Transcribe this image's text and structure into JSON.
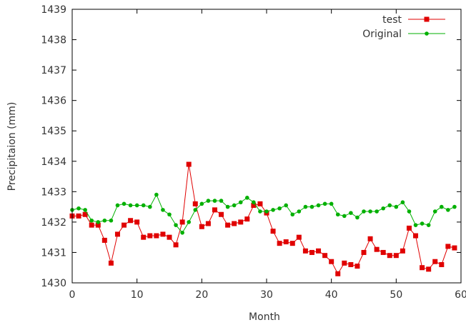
{
  "chart_data": {
    "type": "line",
    "xlabel": "Month",
    "ylabel": "Precipitaion (mm)",
    "xlim": [
      0,
      60
    ],
    "ylim": [
      1430,
      1439
    ],
    "x_ticks": [
      0,
      10,
      20,
      30,
      40,
      50,
      60
    ],
    "y_ticks": [
      1430,
      1431,
      1432,
      1433,
      1434,
      1435,
      1436,
      1437,
      1438,
      1439
    ],
    "legend_position": "top-right",
    "grid": false,
    "series": [
      {
        "name": "test",
        "color": "#e00000",
        "marker": "square",
        "x": [
          0,
          1,
          2,
          3,
          4,
          5,
          6,
          7,
          8,
          9,
          10,
          11,
          12,
          13,
          14,
          15,
          16,
          17,
          18,
          19,
          20,
          21,
          22,
          23,
          24,
          25,
          26,
          27,
          28,
          29,
          30,
          31,
          32,
          33,
          34,
          35,
          36,
          37,
          38,
          39,
          40,
          41,
          42,
          43,
          44,
          45,
          46,
          47,
          48,
          49,
          50,
          51,
          52,
          53,
          54,
          55,
          56,
          57,
          58,
          59
        ],
        "values": [
          1432.2,
          1432.2,
          1432.25,
          1431.9,
          1431.9,
          1431.4,
          1430.65,
          1431.6,
          1431.9,
          1432.05,
          1432.0,
          1431.5,
          1431.55,
          1431.55,
          1431.6,
          1431.5,
          1431.25,
          1432.0,
          1433.9,
          1432.6,
          1431.85,
          1431.95,
          1432.4,
          1432.25,
          1431.9,
          1431.95,
          1432.0,
          1432.1,
          1432.55,
          1432.6,
          1432.3,
          1431.7,
          1431.3,
          1431.35,
          1431.3,
          1431.5,
          1431.05,
          1431.0,
          1431.05,
          1430.9,
          1430.7,
          1430.3,
          1430.65,
          1430.6,
          1430.55,
          1431.0,
          1431.45,
          1431.1,
          1431.0,
          1430.9,
          1430.9,
          1431.05,
          1431.8,
          1431.55,
          1430.5,
          1430.45,
          1430.7,
          1430.6,
          1431.2,
          1431.15
        ]
      },
      {
        "name": "Original",
        "color": "#00b000",
        "marker": "dot",
        "x": [
          0,
          1,
          2,
          3,
          4,
          5,
          6,
          7,
          8,
          9,
          10,
          11,
          12,
          13,
          14,
          15,
          16,
          17,
          18,
          19,
          20,
          21,
          22,
          23,
          24,
          25,
          26,
          27,
          28,
          29,
          30,
          31,
          32,
          33,
          34,
          35,
          36,
          37,
          38,
          39,
          40,
          41,
          42,
          43,
          44,
          45,
          46,
          47,
          48,
          49,
          50,
          51,
          52,
          53,
          54,
          55,
          56,
          57,
          58,
          59
        ],
        "values": [
          1432.4,
          1432.45,
          1432.4,
          1432.05,
          1432.0,
          1432.05,
          1432.05,
          1432.55,
          1432.6,
          1432.55,
          1432.55,
          1432.55,
          1432.5,
          1432.9,
          1432.4,
          1432.25,
          1431.9,
          1431.65,
          1432.0,
          1432.4,
          1432.6,
          1432.7,
          1432.7,
          1432.7,
          1432.5,
          1432.55,
          1432.65,
          1432.8,
          1432.65,
          1432.35,
          1432.35,
          1432.4,
          1432.45,
          1432.55,
          1432.25,
          1432.35,
          1432.5,
          1432.5,
          1432.55,
          1432.6,
          1432.6,
          1432.25,
          1432.2,
          1432.3,
          1432.15,
          1432.35,
          1432.35,
          1432.35,
          1432.45,
          1432.55,
          1432.5,
          1432.65,
          1432.35,
          1431.9,
          1431.95,
          1431.9,
          1432.35,
          1432.5,
          1432.4,
          1432.5
        ]
      }
    ]
  }
}
